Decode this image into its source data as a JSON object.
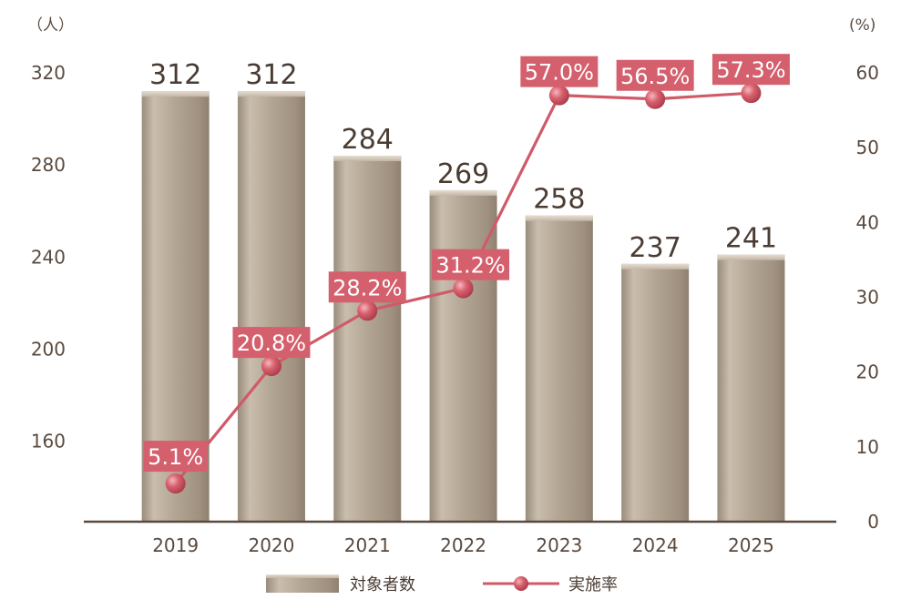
{
  "chart_data": {
    "type": "bar",
    "categories": [
      "2019",
      "2020",
      "2021",
      "2022",
      "2023",
      "2024",
      "2025"
    ],
    "series": [
      {
        "name": "対象者数",
        "type": "bar",
        "axis": "left",
        "values": [
          312,
          312,
          284,
          269,
          258,
          237,
          241
        ],
        "labels": [
          "312",
          "312",
          "284",
          "269",
          "258",
          "237",
          "241"
        ]
      },
      {
        "name": "実施率",
        "type": "line",
        "axis": "right",
        "values": [
          5.1,
          20.8,
          28.2,
          31.2,
          57.0,
          56.5,
          57.3
        ],
        "labels": [
          "5.1%",
          "20.8%",
          "28.2%",
          "31.2%",
          "57.0%",
          "56.5%",
          "57.3%"
        ]
      }
    ],
    "left_axis": {
      "unit": "（人）",
      "ticks": [
        "160",
        "200",
        "240",
        "280",
        "320"
      ],
      "tick_values": [
        160,
        200,
        240,
        280,
        320
      ],
      "ylim": [
        125,
        320
      ]
    },
    "right_axis": {
      "unit": "(%)",
      "ticks": [
        "0",
        "10",
        "20",
        "30",
        "40",
        "50",
        "60"
      ],
      "tick_values": [
        0,
        10,
        20,
        30,
        40,
        50,
        60
      ],
      "ylim": [
        0,
        60
      ]
    },
    "legend": {
      "placement": "bottom-center"
    },
    "grid": false
  },
  "colors": {
    "bar_fill": "#b3a593",
    "bar_light": "#d8cdbf",
    "bar_dark": "#8f8171",
    "line": "#d05a68",
    "label_box": "#d4606e",
    "axis": "#5a4a3f",
    "text": "#4a3c33"
  }
}
